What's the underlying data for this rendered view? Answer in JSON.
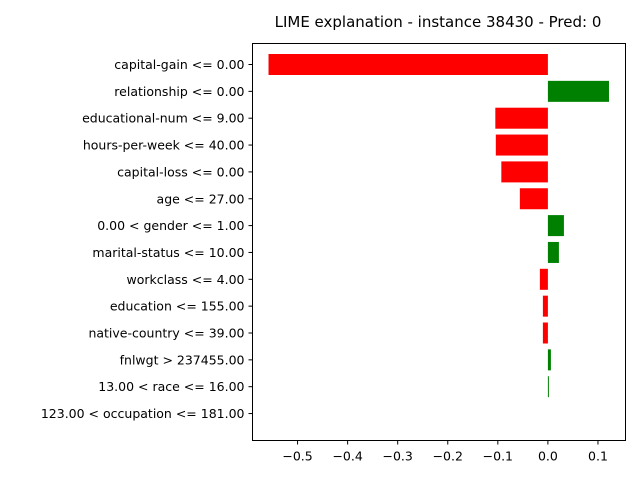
{
  "chart_data": {
    "type": "bar",
    "orientation": "horizontal",
    "title": "LIME explanation - instance 38430 - Pred: 0",
    "xlabel": "",
    "ylabel": "",
    "xlim": [
      -0.59,
      0.155
    ],
    "xticks": [
      -0.5,
      -0.4,
      -0.3,
      -0.2,
      -0.1,
      0.0,
      0.1
    ],
    "xtick_labels": [
      "−0.5",
      "−0.4",
      "−0.3",
      "−0.2",
      "−0.1",
      "0.0",
      "0.1"
    ],
    "categories": [
      "capital-gain <= 0.00",
      "relationship <= 0.00",
      "educational-num <= 9.00",
      "hours-per-week <= 40.00",
      "capital-loss <= 0.00",
      "age <= 27.00",
      "0.00 < gender <= 1.00",
      "marital-status <= 10.00",
      "workclass <= 4.00",
      "education <= 155.00",
      "native-country <= 39.00",
      "fnlwgt > 237455.00",
      "13.00 < race <= 16.00",
      "123.00 < occupation <= 181.00"
    ],
    "values": [
      -0.558,
      0.122,
      -0.105,
      -0.104,
      -0.093,
      -0.056,
      0.032,
      0.022,
      -0.016,
      -0.01,
      -0.01,
      0.006,
      0.002,
      0.0
    ],
    "colors": {
      "negative": "#ff0000",
      "positive": "#008000"
    },
    "grid": false,
    "legend": "none"
  }
}
